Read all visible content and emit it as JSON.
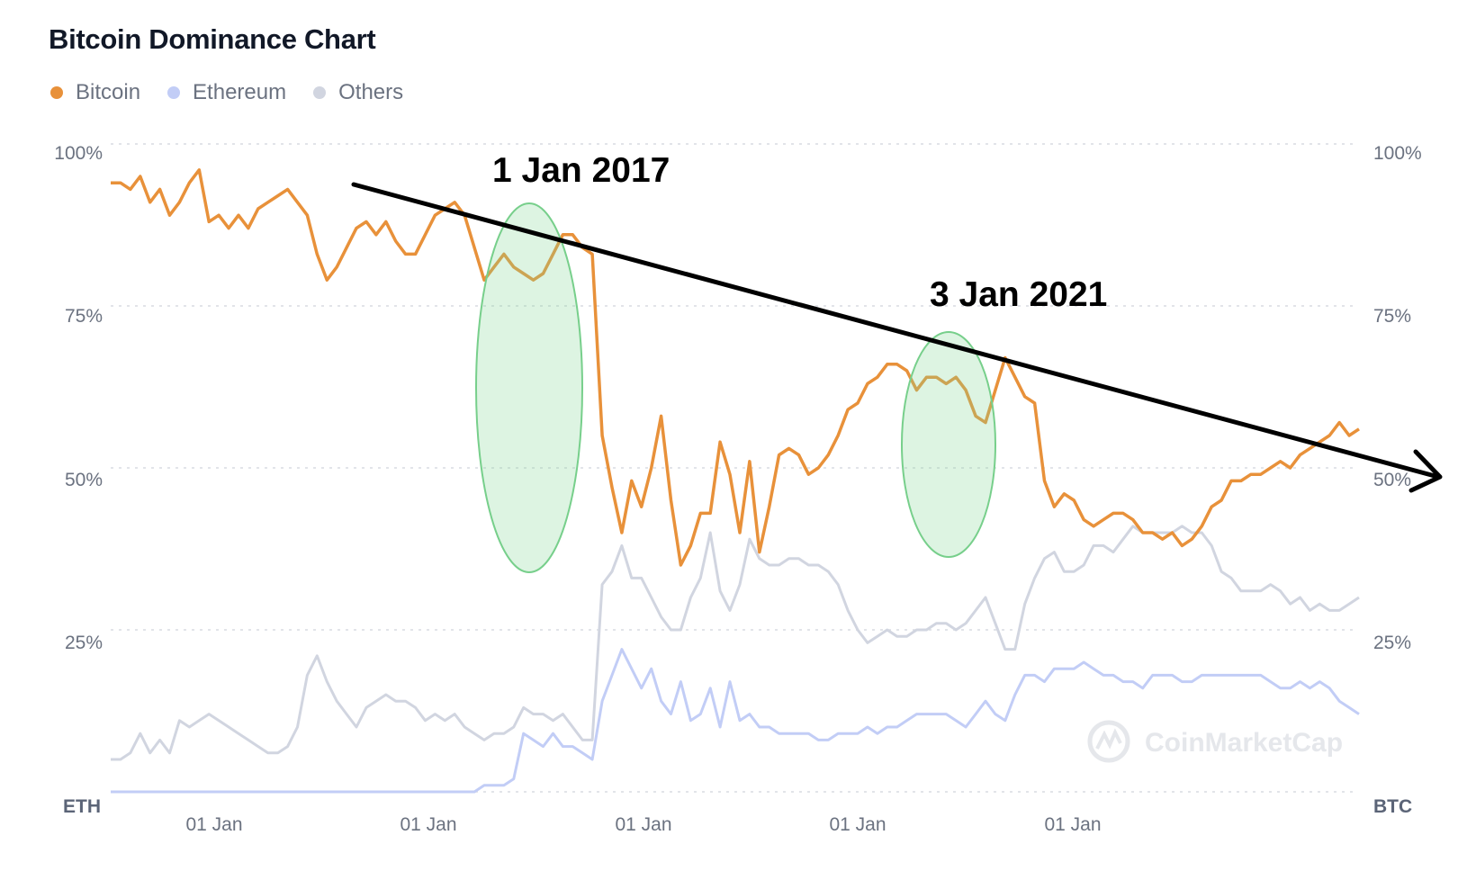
{
  "chart_data": {
    "type": "line",
    "title": "Bitcoin Dominance Chart",
    "y_ticks": [
      "100%",
      "75%",
      "50%",
      "25%"
    ],
    "ylim": [
      0,
      100
    ],
    "x_ticks": [
      "01 Jan",
      "01 Jan",
      "01 Jan",
      "01 Jan",
      "01 Jan"
    ],
    "left_axis_label": "ETH",
    "right_axis_label": "BTC",
    "grid": "horizontal dotted",
    "legend_position": "top-left",
    "series": [
      {
        "name": "Bitcoin",
        "color": "#e8913a",
        "values": [
          94,
          94,
          93,
          95,
          91,
          93,
          89,
          91,
          94,
          96,
          88,
          89,
          87,
          89,
          87,
          90,
          91,
          92,
          93,
          91,
          89,
          83,
          79,
          81,
          84,
          87,
          88,
          86,
          88,
          85,
          83,
          83,
          86,
          89,
          90,
          91,
          89,
          84,
          79,
          81,
          83,
          81,
          80,
          79,
          80,
          83,
          86,
          86,
          84,
          83,
          55,
          47,
          40,
          48,
          44,
          50,
          58,
          45,
          35,
          38,
          43,
          43,
          54,
          49,
          40,
          51,
          37,
          44,
          52,
          53,
          52,
          49,
          50,
          52,
          55,
          59,
          60,
          63,
          64,
          66,
          66,
          65,
          62,
          64,
          64,
          63,
          64,
          62,
          58,
          57,
          62,
          67,
          64,
          61,
          60,
          48,
          44,
          46,
          45,
          42,
          41,
          42,
          43,
          43,
          42,
          40,
          40,
          39,
          40,
          38,
          39,
          41,
          44,
          45,
          48,
          48,
          49,
          49,
          50,
          51,
          50,
          52,
          53,
          54,
          55,
          57,
          55,
          56
        ]
      },
      {
        "name": "Ethereum",
        "color": "#c2cdf6",
        "values": [
          0,
          0,
          0,
          0,
          0,
          0,
          0,
          0,
          0,
          0,
          0,
          0,
          0,
          0,
          0,
          0,
          0,
          0,
          0,
          0,
          0,
          0,
          0,
          0,
          0,
          0,
          0,
          0,
          0,
          0,
          0,
          0,
          0,
          0,
          0,
          0,
          0,
          0,
          1,
          1,
          1,
          2,
          9,
          8,
          7,
          9,
          7,
          7,
          6,
          5,
          14,
          18,
          22,
          19,
          16,
          19,
          14,
          12,
          17,
          11,
          12,
          16,
          10,
          17,
          11,
          12,
          10,
          10,
          9,
          9,
          9,
          9,
          8,
          8,
          9,
          9,
          9,
          10,
          9,
          10,
          10,
          11,
          12,
          12,
          12,
          12,
          11,
          10,
          12,
          14,
          12,
          11,
          15,
          18,
          18,
          17,
          19,
          19,
          19,
          20,
          19,
          18,
          18,
          17,
          17,
          16,
          18,
          18,
          18,
          17,
          17,
          18,
          18,
          18,
          18,
          18,
          18,
          18,
          17,
          16,
          16,
          17,
          16,
          17,
          16,
          14,
          13,
          12
        ]
      },
      {
        "name": "Others",
        "color": "#d1d5e0",
        "values": [
          5,
          5,
          6,
          9,
          6,
          8,
          6,
          11,
          10,
          11,
          12,
          11,
          10,
          9,
          8,
          7,
          6,
          6,
          7,
          10,
          18,
          21,
          17,
          14,
          12,
          10,
          13,
          14,
          15,
          14,
          14,
          13,
          11,
          12,
          11,
          12,
          10,
          9,
          8,
          9,
          9,
          10,
          13,
          12,
          12,
          11,
          12,
          10,
          8,
          8,
          32,
          34,
          38,
          33,
          33,
          30,
          27,
          25,
          25,
          30,
          33,
          40,
          31,
          28,
          32,
          39,
          36,
          35,
          35,
          36,
          36,
          35,
          35,
          34,
          32,
          28,
          25,
          23,
          24,
          25,
          24,
          24,
          25,
          25,
          26,
          26,
          25,
          26,
          28,
          30,
          26,
          22,
          22,
          29,
          33,
          36,
          37,
          34,
          34,
          35,
          38,
          38,
          37,
          39,
          41,
          40,
          40,
          40,
          40,
          41,
          40,
          40,
          38,
          34,
          33,
          31,
          31,
          31,
          32,
          31,
          29,
          30,
          28,
          29,
          28,
          28,
          29,
          30
        ]
      }
    ],
    "annotations": [
      {
        "label": "1 Jan 2017"
      },
      {
        "label": "3 Jan 2021"
      }
    ],
    "watermark": "CoinMarketCap"
  }
}
